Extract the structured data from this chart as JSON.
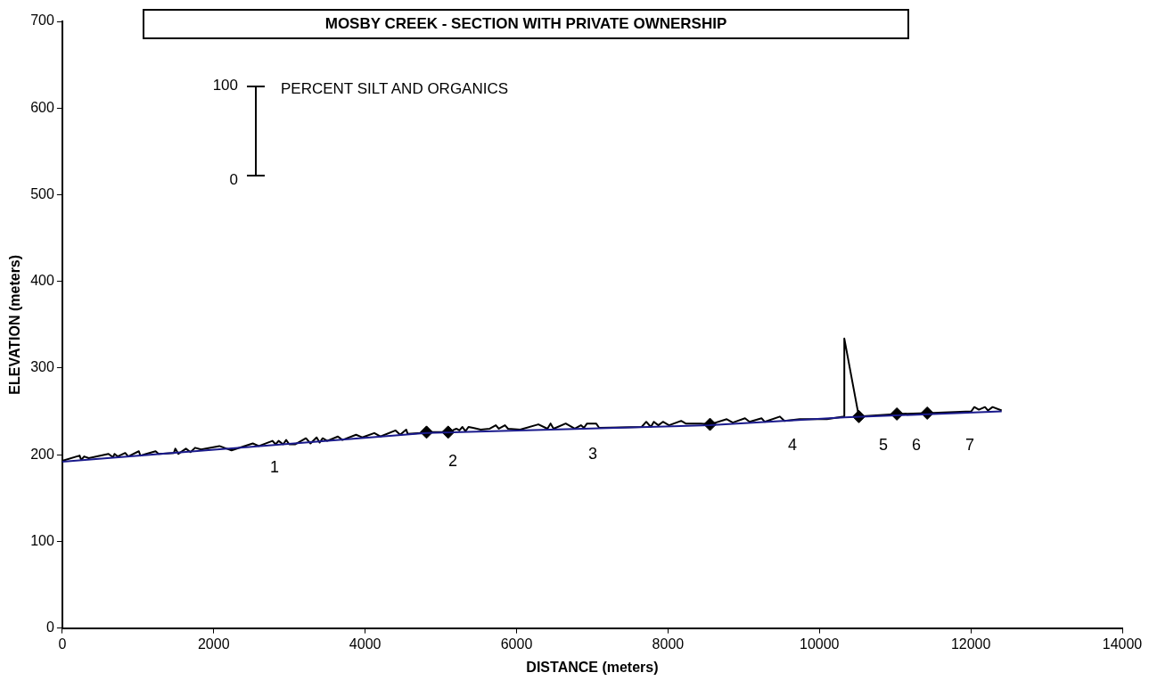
{
  "chart_data": {
    "type": "line",
    "title": "MOSBY CREEK - SECTION WITH PRIVATE OWNERSHIP",
    "xlabel": "DISTANCE (meters)",
    "ylabel": "ELEVATION (meters)",
    "xlim": [
      0,
      14000
    ],
    "xticks": [
      0,
      2000,
      4000,
      6000,
      8000,
      10000,
      12000,
      14000
    ],
    "ylim": [
      0,
      700
    ],
    "yticks": [
      0,
      100,
      200,
      300,
      400,
      500,
      600,
      700
    ],
    "grid": false,
    "legend": false,
    "series": [
      {
        "color": "#1a1a8c",
        "marker": "none",
        "x": [
          0,
          4811,
          8555,
          10329,
          12407
        ],
        "values": [
          192,
          225,
          234,
          243,
          250
        ]
      },
      {
        "color": "#000000",
        "marker": "none",
        "x": [
          0,
          229,
          249,
          289,
          349,
          610,
          670,
          690,
          730,
          831,
          871,
          1011,
          1031,
          1232,
          1272,
          1473,
          1493,
          1533,
          1633,
          1693,
          1754,
          1834,
          2075,
          2235,
          2516,
          2596,
          2777,
          2817,
          2857,
          2917,
          2957,
          2998,
          3078,
          3218,
          3278,
          3359,
          3399,
          3439,
          3499,
          3640,
          3700,
          3880,
          3961,
          4121,
          4201,
          4402,
          4462,
          4542,
          4562,
          4743,
          4811,
          5096,
          5205,
          5245,
          5285,
          5325,
          5365,
          5425,
          5526,
          5646,
          5726,
          5766,
          5847,
          5887,
          6047,
          6288,
          6408,
          6449,
          6489,
          6649,
          6769,
          6850,
          6890,
          6930,
          7051,
          7091,
          7652,
          7713,
          7773,
          7813,
          7873,
          7933,
          8014,
          8174,
          8234,
          8435,
          8555,
          8776,
          8856,
          9017,
          9077,
          9237,
          9277,
          9478,
          9538,
          9739,
          10100,
          10329,
          10329,
          10521,
          11023,
          11424,
          12006,
          12046,
          12106,
          12187,
          12227,
          12287,
          12407
        ],
        "values": [
          193,
          199,
          194,
          198,
          196,
          201,
          197,
          201,
          198,
          202,
          198,
          204,
          199,
          204,
          201,
          202,
          207,
          201,
          207,
          203,
          208,
          206,
          210,
          205,
          213,
          210,
          216,
          212,
          216,
          212,
          217,
          212,
          212,
          219,
          213,
          220,
          214,
          219,
          216,
          221,
          217,
          223,
          220,
          225,
          221,
          228,
          223,
          229,
          224,
          225,
          226,
          226,
          230,
          228,
          232,
          227,
          232,
          231,
          229,
          230,
          234,
          230,
          234,
          230,
          229,
          235,
          230,
          236,
          230,
          236,
          230,
          234,
          231,
          236,
          236,
          231,
          232,
          238,
          232,
          238,
          234,
          238,
          234,
          239,
          236,
          236,
          235,
          241,
          237,
          242,
          238,
          242,
          238,
          244,
          239,
          241,
          241,
          244,
          334,
          244,
          247,
          248,
          250,
          255,
          252,
          255,
          251,
          255,
          251
        ]
      },
      {
        "type": "scatter",
        "color": "#000000",
        "marker": "diamond",
        "x": [
          4811,
          5096,
          8555,
          10521,
          11023,
          11424
        ],
        "values": [
          226,
          226,
          235,
          244,
          247,
          248
        ]
      }
    ],
    "annotations": [
      "100",
      "0",
      "PERCENT SILT AND ORGANICS",
      "1",
      "2",
      "3",
      "4",
      "5",
      "6",
      "7"
    ]
  }
}
